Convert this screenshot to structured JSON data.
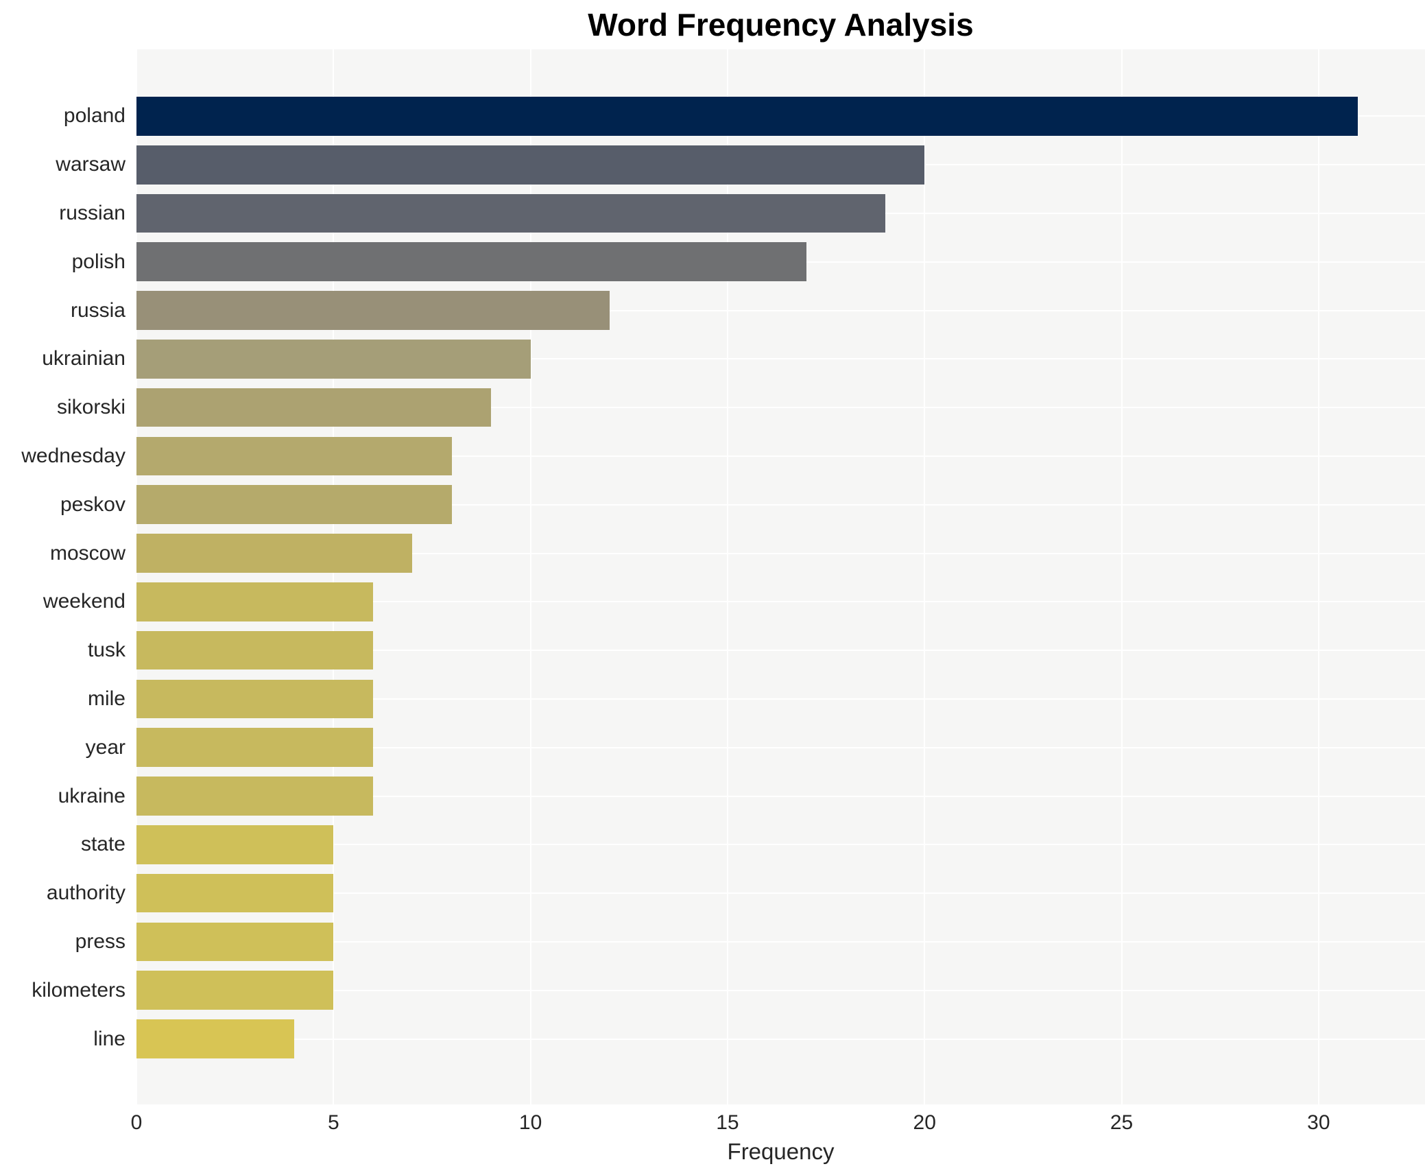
{
  "title": "Word Frequency Analysis",
  "chart_data": {
    "type": "bar",
    "orientation": "horizontal",
    "title": "Word Frequency Analysis",
    "xlabel": "Frequency",
    "ylabel": "",
    "categories": [
      "poland",
      "warsaw",
      "russian",
      "polish",
      "russia",
      "ukrainian",
      "sikorski",
      "wednesday",
      "peskov",
      "moscow",
      "weekend",
      "tusk",
      "mile",
      "year",
      "ukraine",
      "state",
      "authority",
      "press",
      "kilometers",
      "line"
    ],
    "values": [
      31,
      20,
      19,
      17,
      12,
      10,
      9,
      8,
      8,
      7,
      6,
      6,
      6,
      6,
      6,
      5,
      5,
      5,
      5,
      4
    ],
    "bar_colors": [
      "#00234e",
      "#575d6a",
      "#60646e",
      "#6f7072",
      "#989078",
      "#a59e78",
      "#aca271",
      "#b4a96d",
      "#b5aa6b",
      "#bfb163",
      "#c7b95e",
      "#c7b95e",
      "#c7b95e",
      "#c7b95e",
      "#c7b95e",
      "#cfc059",
      "#cfc059",
      "#cfc059",
      "#cfc059",
      "#d8c554"
    ],
    "x_ticks": [
      0,
      5,
      10,
      15,
      20,
      25,
      30
    ],
    "xlim": [
      0,
      32.7
    ],
    "grid": true,
    "legend_position": "none",
    "plot_background": "#f6f6f5",
    "gridline_color": "#ffffff",
    "text_color": "#262626",
    "title_color": "#000000"
  }
}
